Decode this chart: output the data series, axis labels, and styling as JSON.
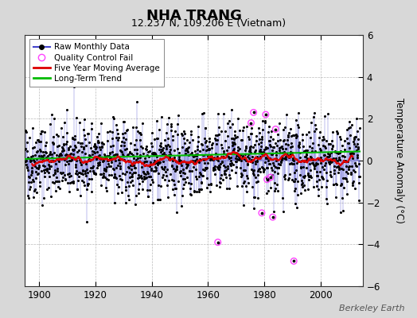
{
  "title": "NHA TRANG",
  "subtitle": "12.237 N, 109.206 E (Vietnam)",
  "ylabel": "Temperature Anomaly (°C)",
  "watermark": "Berkeley Earth",
  "xlim": [
    1895,
    2015
  ],
  "ylim": [
    -6,
    6
  ],
  "yticks": [
    -6,
    -4,
    -2,
    0,
    2,
    4,
    6
  ],
  "xticks": [
    1900,
    1920,
    1940,
    1960,
    1980,
    2000
  ],
  "start_year": 1895,
  "end_year": 2013,
  "seed": 42,
  "raw_color": "#4444cc",
  "raw_dot_color": "#000000",
  "moving_avg_color": "#dd0000",
  "trend_color": "#00bb00",
  "qc_fail_color": "#ff44ff",
  "bg_color": "#d8d8d8",
  "plot_bg_color": "#ffffff",
  "legend_entries": [
    "Raw Monthly Data",
    "Quality Control Fail",
    "Five Year Moving Average",
    "Long-Term Trend"
  ],
  "moving_avg_window": 60,
  "noise_std": 1.05,
  "qc_fail_year_vals": [
    [
      1963.5,
      -3.9
    ],
    [
      1975.3,
      1.8
    ],
    [
      1976.2,
      2.3
    ],
    [
      1979.1,
      -2.5
    ],
    [
      1980.5,
      2.2
    ],
    [
      1981.0,
      -0.9
    ],
    [
      1982.2,
      -0.8
    ],
    [
      1983.0,
      -2.7
    ],
    [
      1984.0,
      1.5
    ],
    [
      1990.5,
      -4.8
    ]
  ]
}
